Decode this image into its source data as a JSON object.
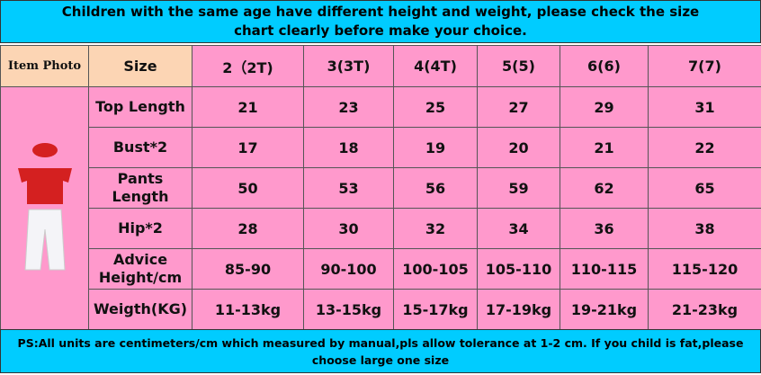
{
  "banner": "Children with the same age have different height and weight, please check the size chart clearly before make your choice.",
  "table": {
    "header": [
      "Item Photo",
      "Size",
      "2（2T)",
      "3(3T)",
      "4(4T)",
      "5(5)",
      "6(6)",
      "7(7)"
    ],
    "rows": [
      [
        "Top Length",
        "21",
        "23",
        "25",
        "27",
        "29",
        "31"
      ],
      [
        "Bust*2",
        "17",
        "18",
        "19",
        "20",
        "21",
        "22"
      ],
      [
        "Pants Length",
        "50",
        "53",
        "56",
        "59",
        "62",
        "65"
      ],
      [
        "Hip*2",
        "28",
        "30",
        "32",
        "34",
        "36",
        "38"
      ],
      [
        "Advice Height/cm",
        "85-90",
        "90-100",
        "100-105",
        "105-110",
        "110-115",
        "115-120"
      ],
      [
        "Weigth(KG)",
        "11-13kg",
        "13-15kg",
        "15-17kg",
        "17-19kg",
        "19-21kg",
        "21-23kg"
      ]
    ]
  },
  "footer": "PS:All units are centimeters/cm which measured by manual,pls allow tolerance at 1-2 cm. If you child is fat,please choose large one size"
}
